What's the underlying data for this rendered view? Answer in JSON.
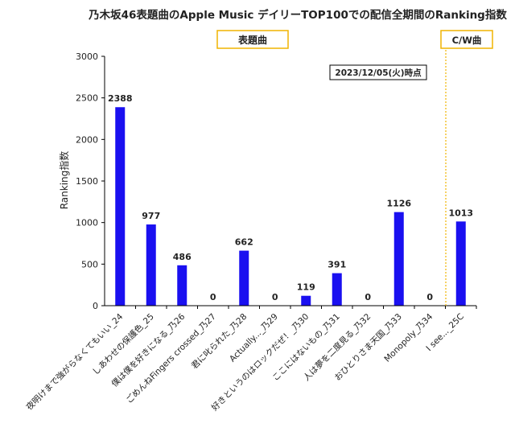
{
  "chart_data": {
    "type": "bar",
    "title": "乃木坂46表題曲のApple Music デイリーTOP100での配信全期間のRanking指数",
    "ylabel": "Ranking指数",
    "xlabel": "",
    "ylim": [
      0,
      3000
    ],
    "yticks": [
      0,
      500,
      1000,
      1500,
      2000,
      2500,
      3000
    ],
    "grid": false,
    "legend": "none",
    "categories": [
      "夜明けまで強がらなくてもいい_24",
      "しあわせの保護色_25",
      "僕は僕を好きになる_乃26",
      "ごめんねFingers crossed_乃27",
      "君に叱られた_乃28",
      "Actually..._乃29",
      "好きというのはロックだぜ！_乃30",
      "ここにはないもの_乃31",
      "人は夢を二度見る_乃32",
      "おひとりさま天国_乃33",
      "Monopoly_乃34",
      "I see..._25C"
    ],
    "series": [
      {
        "values": [
          2388,
          977,
          486,
          0,
          662,
          0,
          119,
          391,
          0,
          1126,
          0,
          1013
        ]
      }
    ],
    "data_labels": [
      "2388",
      "977",
      "486",
      "0",
      "662",
      "0",
      "119",
      "391",
      "0",
      "1126",
      "0",
      "1013"
    ],
    "colors": {
      "bar": "#1a10f0",
      "divider": "#f0b400",
      "box_border": "#f0b400"
    },
    "annotations": {
      "group_title_singles": "表題曲",
      "group_title_cw": "C/W曲",
      "date_note": "2023/12/05(火)時点"
    }
  }
}
